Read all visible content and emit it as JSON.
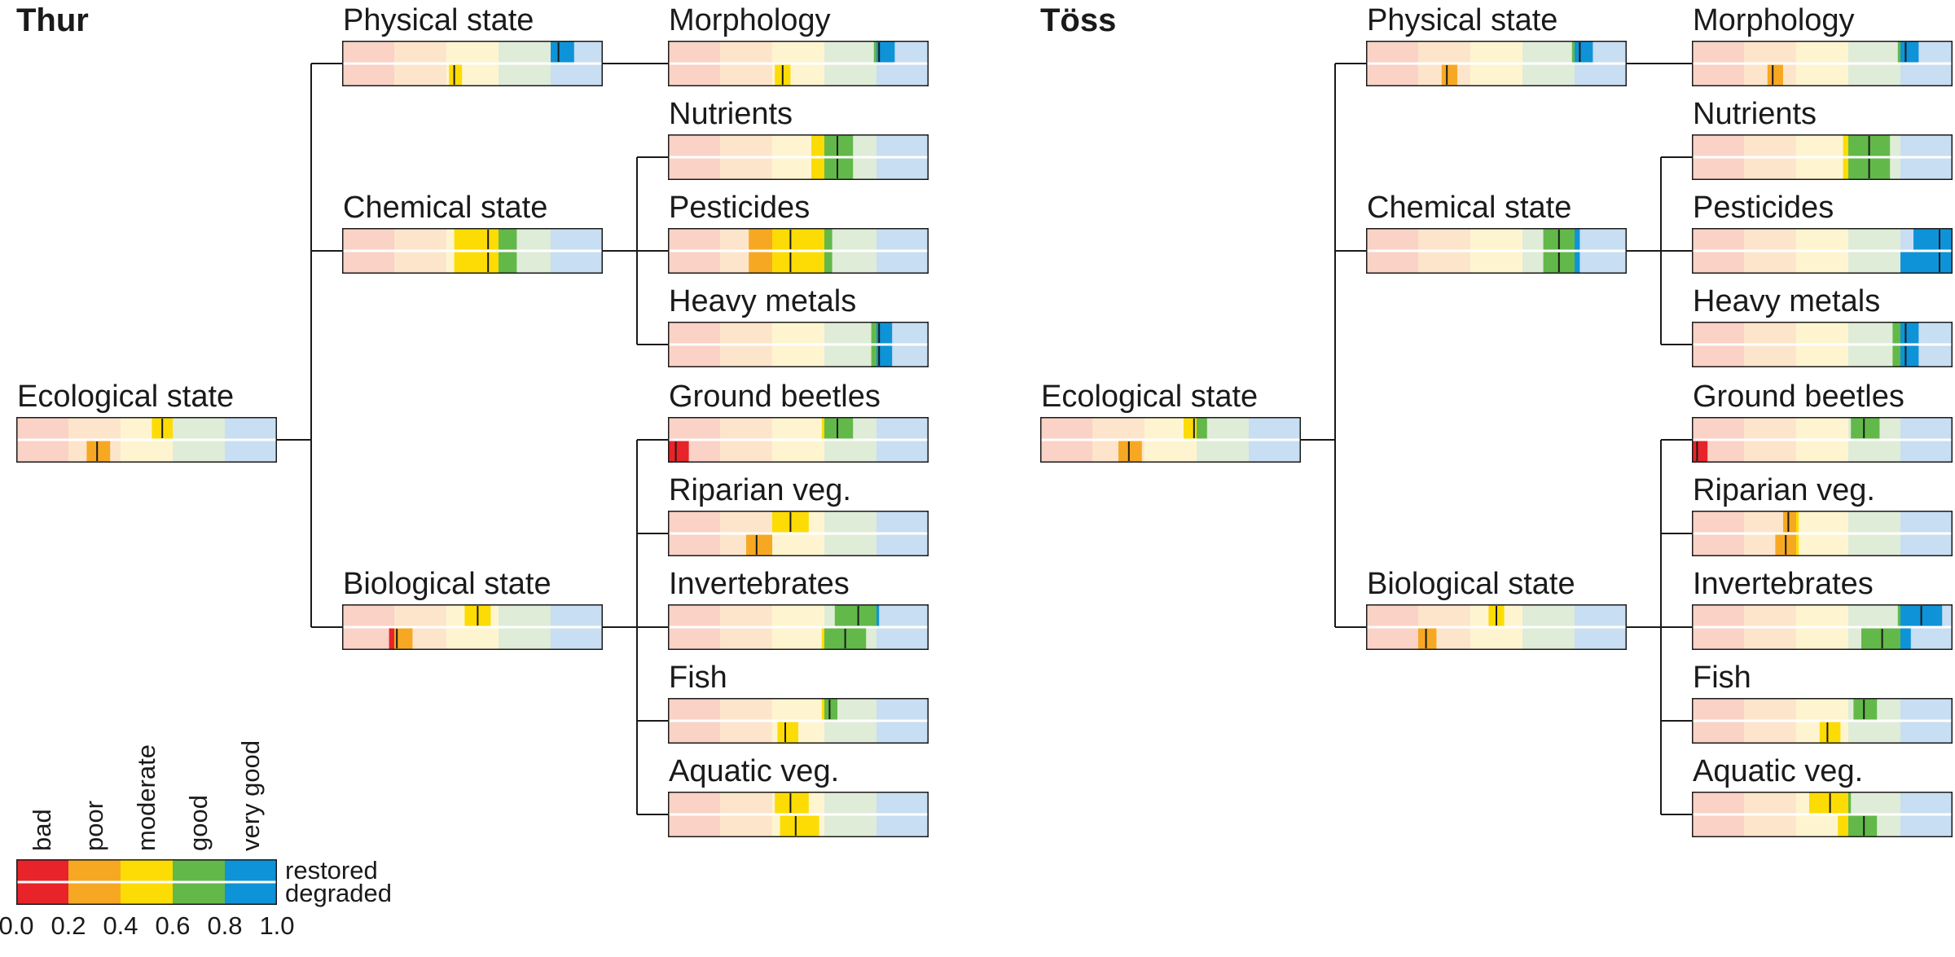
{
  "colors": {
    "bad": "#e8232a",
    "poor": "#f7a823",
    "moderate": "#fcdc04",
    "good": "#63b84a",
    "very_good": "#0f93d8",
    "bad_light": "#fad2c6",
    "poor_light": "#fde5cc",
    "moderate_light": "#fef5d0",
    "good_light": "#dfecd7",
    "very_good_light": "#c8def2",
    "line": "#1a1a1a"
  },
  "panels": [
    {
      "title": "Thur",
      "nodes": [
        {
          "label": "Ecological state",
          "restored": [
            0.52,
            0.6,
            0.56
          ],
          "degraded": [
            0.27,
            0.36,
            0.31
          ]
        },
        {
          "label": "Physical state",
          "restored": [
            0.8,
            0.89,
            0.83
          ],
          "degraded": [
            0.41,
            0.46,
            0.43
          ]
        },
        {
          "label": "Chemical state",
          "restored": [
            0.43,
            0.67,
            0.56
          ],
          "degraded": [
            0.43,
            0.67,
            0.56
          ]
        },
        {
          "label": "Biological state",
          "restored": [
            0.47,
            0.57,
            0.52
          ],
          "degraded": [
            0.18,
            0.27,
            0.21
          ]
        },
        {
          "label": "Morphology",
          "restored": [
            0.79,
            0.87,
            0.81
          ],
          "degraded": [
            0.41,
            0.47,
            0.44
          ]
        },
        {
          "label": "Nutrients",
          "restored": [
            0.55,
            0.71,
            0.65
          ],
          "degraded": [
            0.55,
            0.71,
            0.65
          ]
        },
        {
          "label": "Pesticides",
          "restored": [
            0.31,
            0.63,
            0.47
          ],
          "degraded": [
            0.31,
            0.63,
            0.47
          ]
        },
        {
          "label": "Heavy metals",
          "restored": [
            0.78,
            0.86,
            0.81
          ],
          "degraded": [
            0.78,
            0.86,
            0.81
          ]
        },
        {
          "label": "Ground beetles",
          "restored": [
            0.59,
            0.71,
            0.65
          ],
          "degraded": [
            0.0,
            0.08,
            0.03
          ]
        },
        {
          "label": "Riparian veg.",
          "restored": [
            0.4,
            0.54,
            0.47
          ],
          "degraded": [
            0.3,
            0.4,
            0.34
          ]
        },
        {
          "label": "Invertebrates",
          "restored": [
            0.64,
            0.81,
            0.73
          ],
          "degraded": [
            0.59,
            0.76,
            0.68
          ]
        },
        {
          "label": "Fish",
          "restored": [
            0.59,
            0.65,
            0.62
          ],
          "degraded": [
            0.42,
            0.5,
            0.45
          ]
        },
        {
          "label": "Aquatic veg.",
          "restored": [
            0.41,
            0.54,
            0.47
          ],
          "degraded": [
            0.43,
            0.58,
            0.49
          ]
        }
      ]
    },
    {
      "title": "Töss",
      "nodes": [
        {
          "label": "Ecological state",
          "restored": [
            0.55,
            0.64,
            0.59
          ],
          "degraded": [
            0.3,
            0.39,
            0.34
          ]
        },
        {
          "label": "Physical state",
          "restored": [
            0.79,
            0.87,
            0.82
          ],
          "degraded": [
            0.29,
            0.35,
            0.31
          ]
        },
        {
          "label": "Chemical state",
          "restored": [
            0.68,
            0.82,
            0.74
          ],
          "degraded": [
            0.68,
            0.82,
            0.74
          ]
        },
        {
          "label": "Biological state",
          "restored": [
            0.47,
            0.53,
            0.5
          ],
          "degraded": [
            0.2,
            0.27,
            0.23
          ]
        },
        {
          "label": "Morphology",
          "restored": [
            0.79,
            0.87,
            0.82
          ],
          "degraded": [
            0.29,
            0.35,
            0.31
          ]
        },
        {
          "label": "Nutrients",
          "restored": [
            0.58,
            0.76,
            0.68
          ],
          "degraded": [
            0.58,
            0.76,
            0.68
          ]
        },
        {
          "label": "Pesticides",
          "restored": [
            0.85,
            1.0,
            0.95
          ],
          "degraded": [
            0.8,
            1.0,
            0.95
          ]
        },
        {
          "label": "Heavy metals",
          "restored": [
            0.77,
            0.87,
            0.82
          ],
          "degraded": [
            0.77,
            0.87,
            0.82
          ]
        },
        {
          "label": "Ground beetles",
          "restored": [
            0.61,
            0.72,
            0.66
          ],
          "degraded": [
            0.0,
            0.06,
            0.02
          ]
        },
        {
          "label": "Riparian veg.",
          "restored": [
            0.35,
            0.41,
            0.37
          ],
          "degraded": [
            0.32,
            0.41,
            0.36
          ]
        },
        {
          "label": "Invertebrates",
          "restored": [
            0.79,
            0.96,
            0.88
          ],
          "degraded": [
            0.65,
            0.84,
            0.73
          ]
        },
        {
          "label": "Fish",
          "restored": [
            0.62,
            0.71,
            0.66
          ],
          "degraded": [
            0.49,
            0.57,
            0.52
          ]
        },
        {
          "label": "Aquatic veg.",
          "restored": [
            0.45,
            0.61,
            0.53
          ],
          "degraded": [
            0.56,
            0.71,
            0.66
          ]
        }
      ]
    }
  ],
  "legend": {
    "categories": [
      "bad",
      "poor",
      "moderate",
      "good",
      "very good"
    ],
    "rows": [
      "restored",
      "degraded"
    ],
    "ticks": [
      "0.0",
      "0.2",
      "0.4",
      "0.6",
      "0.8",
      "1.0"
    ]
  }
}
